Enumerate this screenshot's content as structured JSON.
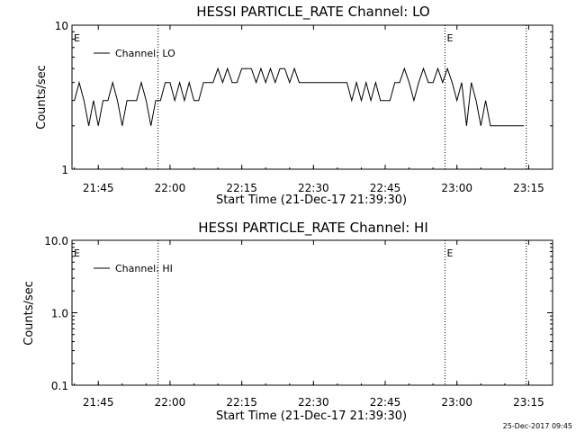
{
  "chart_data": [
    {
      "type": "line",
      "title": "HESSI PARTICLE_RATE Channel: LO",
      "xlabel": "Start Time (21-Dec-17 21:39:30)",
      "ylabel": "Counts/sec",
      "yscale": "log",
      "ylim": [
        1,
        10
      ],
      "xlim": [
        "21:39:30",
        "23:20:00"
      ],
      "x_ticks": [
        "21:45",
        "22:00",
        "22:15",
        "22:30",
        "22:45",
        "23:00",
        "23:15"
      ],
      "y_ticks": [
        "1",
        "10"
      ],
      "grid": false,
      "legend": {
        "position": "top-left",
        "entries": [
          "Channel: LO"
        ]
      },
      "event_lines": [
        {
          "time": "21:57:30",
          "label": ""
        },
        {
          "time": "22:57:30",
          "label": "E"
        },
        {
          "time": "23:14:30",
          "label": ""
        }
      ],
      "edge_label": "E",
      "series": [
        {
          "name": "Channel: LO",
          "x": [
            "21:40:00",
            "21:41:00",
            "21:42:00",
            "21:43:00",
            "21:44:00",
            "21:45:00",
            "21:46:00",
            "21:47:00",
            "21:48:00",
            "21:49:00",
            "21:50:00",
            "21:51:00",
            "21:52:00",
            "21:53:00",
            "21:54:00",
            "21:55:00",
            "21:56:00",
            "21:57:00",
            "21:58:00",
            "21:59:00",
            "22:00:00",
            "22:01:00",
            "22:02:00",
            "22:03:00",
            "22:04:00",
            "22:05:00",
            "22:06:00",
            "22:07:00",
            "22:08:00",
            "22:09:00",
            "22:10:00",
            "22:11:00",
            "22:12:00",
            "22:13:00",
            "22:14:00",
            "22:15:00",
            "22:16:00",
            "22:17:00",
            "22:18:00",
            "22:19:00",
            "22:20:00",
            "22:21:00",
            "22:22:00",
            "22:23:00",
            "22:24:00",
            "22:25:00",
            "22:26:00",
            "22:27:00",
            "22:28:00",
            "22:29:00",
            "22:30:00",
            "22:31:00",
            "22:32:00",
            "22:33:00",
            "22:34:00",
            "22:35:00",
            "22:36:00",
            "22:37:00",
            "22:38:00",
            "22:39:00",
            "22:40:00",
            "22:41:00",
            "22:42:00",
            "22:43:00",
            "22:44:00",
            "22:45:00",
            "22:46:00",
            "22:47:00",
            "22:48:00",
            "22:49:00",
            "22:50:00",
            "22:51:00",
            "22:52:00",
            "22:53:00",
            "22:54:00",
            "22:55:00",
            "22:56:00",
            "22:57:00",
            "22:58:00",
            "22:59:00",
            "23:00:00",
            "23:01:00",
            "23:02:00",
            "23:03:00",
            "23:04:00",
            "23:05:00",
            "23:06:00",
            "23:07:00",
            "23:08:00",
            "23:09:00",
            "23:10:00",
            "23:11:00",
            "23:12:00",
            "23:13:00",
            "23:14:00"
          ],
          "values": [
            3,
            4,
            3,
            2,
            3,
            2,
            3,
            3,
            4,
            3,
            2,
            3,
            3,
            3,
            4,
            3,
            2,
            3,
            3,
            4,
            4,
            3,
            4,
            3,
            4,
            3,
            3,
            4,
            4,
            4,
            5,
            4,
            5,
            4,
            4,
            5,
            5,
            5,
            4,
            5,
            4,
            5,
            4,
            5,
            5,
            4,
            5,
            4,
            4,
            4,
            4,
            4,
            4,
            4,
            4,
            4,
            4,
            4,
            3,
            4,
            3,
            4,
            3,
            4,
            3,
            3,
            3,
            4,
            4,
            5,
            4,
            3,
            4,
            5,
            4,
            4,
            5,
            4,
            5,
            4,
            3,
            4,
            2,
            4,
            3,
            2,
            3,
            2,
            2,
            2,
            2,
            2,
            2,
            2,
            2
          ]
        }
      ]
    },
    {
      "type": "line",
      "title": "HESSI PARTICLE_RATE Channel: HI",
      "xlabel": "Start Time (21-Dec-17 21:39:30)",
      "ylabel": "Counts/sec",
      "yscale": "log",
      "ylim": [
        0.1,
        10
      ],
      "xlim": [
        "21:39:30",
        "23:20:00"
      ],
      "x_ticks": [
        "21:45",
        "22:00",
        "22:15",
        "22:30",
        "22:45",
        "23:00",
        "23:15"
      ],
      "y_ticks": [
        "0.1",
        "1.0",
        "10.0"
      ],
      "grid": false,
      "legend": {
        "position": "top-left",
        "entries": [
          "Channel: HI"
        ]
      },
      "event_lines": [
        {
          "time": "21:57:30",
          "label": ""
        },
        {
          "time": "22:57:30",
          "label": "E"
        },
        {
          "time": "23:14:30",
          "label": ""
        }
      ],
      "edge_label": "E",
      "series": [
        {
          "name": "Channel: HI",
          "x": [],
          "values": []
        }
      ]
    }
  ],
  "footer_stamp": "25-Dec-2017 09:45"
}
